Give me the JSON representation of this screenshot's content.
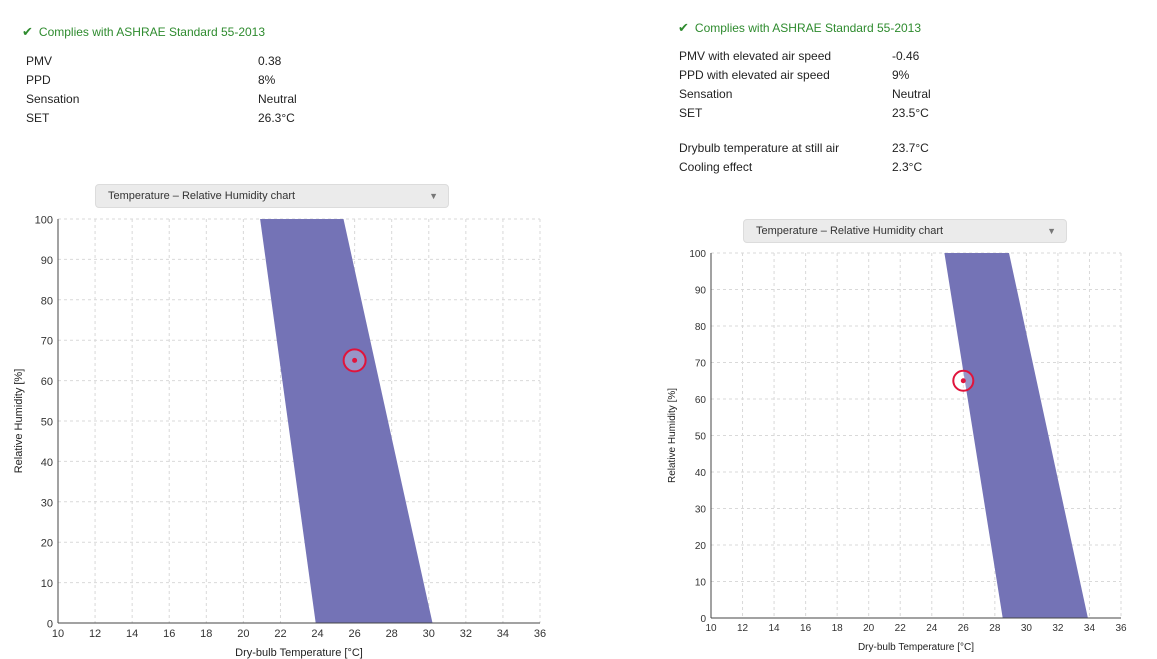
{
  "colors": {
    "comfort_zone": "#7473b6",
    "grid": "#d9d9d9",
    "marker": "#e0143c",
    "compliance_text": "#2e8b2e"
  },
  "left": {
    "compliance": {
      "icon": "check-icon",
      "text": "Complies with ASHRAE Standard 55-2013"
    },
    "results": [
      {
        "label": "PMV",
        "value": "0.38"
      },
      {
        "label": "PPD",
        "value": "8%"
      },
      {
        "label": "Sensation",
        "value": "Neutral"
      },
      {
        "label": "SET",
        "value": "26.3°C"
      }
    ],
    "chart_select": {
      "selected": "Temperature – Relative Humidity chart"
    }
  },
  "right": {
    "compliance": {
      "icon": "check-icon",
      "text": "Complies with ASHRAE Standard 55-2013"
    },
    "results": [
      {
        "label": "PMV with elevated air speed",
        "value": "-0.46"
      },
      {
        "label": "PPD with elevated air speed",
        "value": "9%"
      },
      {
        "label": "Sensation",
        "value": "Neutral"
      },
      {
        "label": "SET",
        "value": "23.5°C"
      }
    ],
    "results_extra": [
      {
        "label": "Drybulb temperature at still air",
        "value": "23.7°C"
      },
      {
        "label": "Cooling effect",
        "value": "2.3°C"
      }
    ],
    "chart_select": {
      "selected": "Temperature – Relative Humidity chart"
    }
  },
  "chart_data": [
    {
      "type": "area",
      "title": "",
      "xlabel": "Dry-bulb Temperature [°C]",
      "ylabel": "Relative Humidity [%]",
      "xlim": [
        10,
        36
      ],
      "ylim": [
        0,
        100
      ],
      "xticks": [
        10,
        12,
        14,
        16,
        18,
        20,
        22,
        24,
        26,
        28,
        30,
        32,
        34,
        36
      ],
      "yticks": [
        0,
        10,
        20,
        30,
        40,
        50,
        60,
        70,
        80,
        90,
        100
      ],
      "grid": true,
      "comfort_zone": [
        [
          20.9,
          100
        ],
        [
          25.4,
          100
        ],
        [
          30.2,
          0
        ],
        [
          23.9,
          0
        ]
      ],
      "point": {
        "x": 26.0,
        "y": 65
      }
    },
    {
      "type": "area",
      "title": "",
      "xlabel": "Dry-bulb Temperature [°C]",
      "ylabel": "Relative Humidity [%]",
      "xlim": [
        10,
        36
      ],
      "ylim": [
        0,
        100
      ],
      "xticks": [
        10,
        12,
        14,
        16,
        18,
        20,
        22,
        24,
        26,
        28,
        30,
        32,
        34,
        36
      ],
      "yticks": [
        0,
        10,
        20,
        30,
        40,
        50,
        60,
        70,
        80,
        90,
        100
      ],
      "grid": true,
      "comfort_zone": [
        [
          24.8,
          100
        ],
        [
          28.9,
          100
        ],
        [
          33.9,
          0
        ],
        [
          28.5,
          0
        ]
      ],
      "point": {
        "x": 26.0,
        "y": 65
      }
    }
  ]
}
